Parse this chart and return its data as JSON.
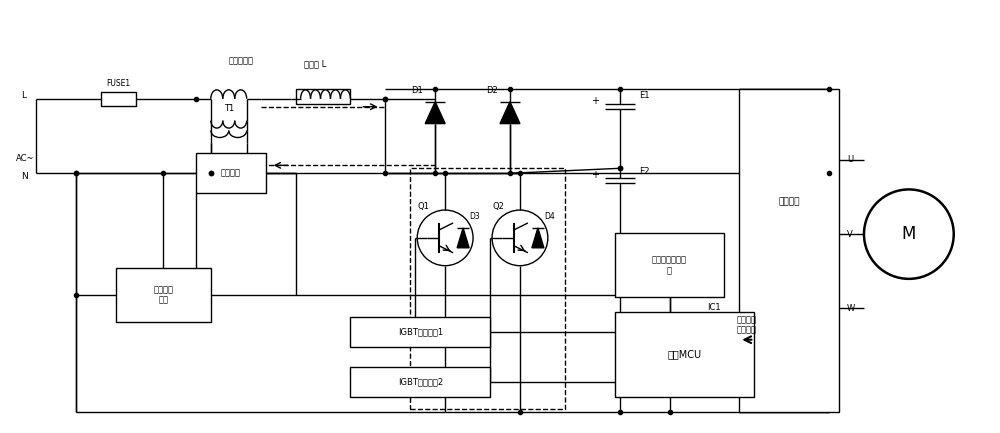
{
  "bg_color": "#ffffff",
  "lc": "#000000",
  "lw": 1.0,
  "fig_w": 10.0,
  "fig_h": 4.33,
  "labels": {
    "L": "L",
    "AC": "AC~",
    "N": "N",
    "FUSE1": "FUSE1",
    "curr_sensor": "电流传感器",
    "T1": "T1",
    "curr_detect": "电流检测",
    "ind_L": "电抗器 L",
    "D1": "D1",
    "D2": "D2",
    "D3": "D3",
    "D4": "D4",
    "Q1": "Q1",
    "Q2": "Q2",
    "E1": "E1",
    "E2": "E2",
    "drive": "驱动模块",
    "U": "U",
    "V": "V",
    "W": "W",
    "zero_cross": "过零检测\n电路",
    "dc_bus": "直流母线电压检\n测",
    "IC1": "IC1",
    "IGBT1": "IGBT驱动单元1",
    "IGBT2": "IGBT驱动单元2",
    "MCU": "主控MCU",
    "motor_drv": "电机或压\n缩机驱动",
    "M": "M"
  }
}
